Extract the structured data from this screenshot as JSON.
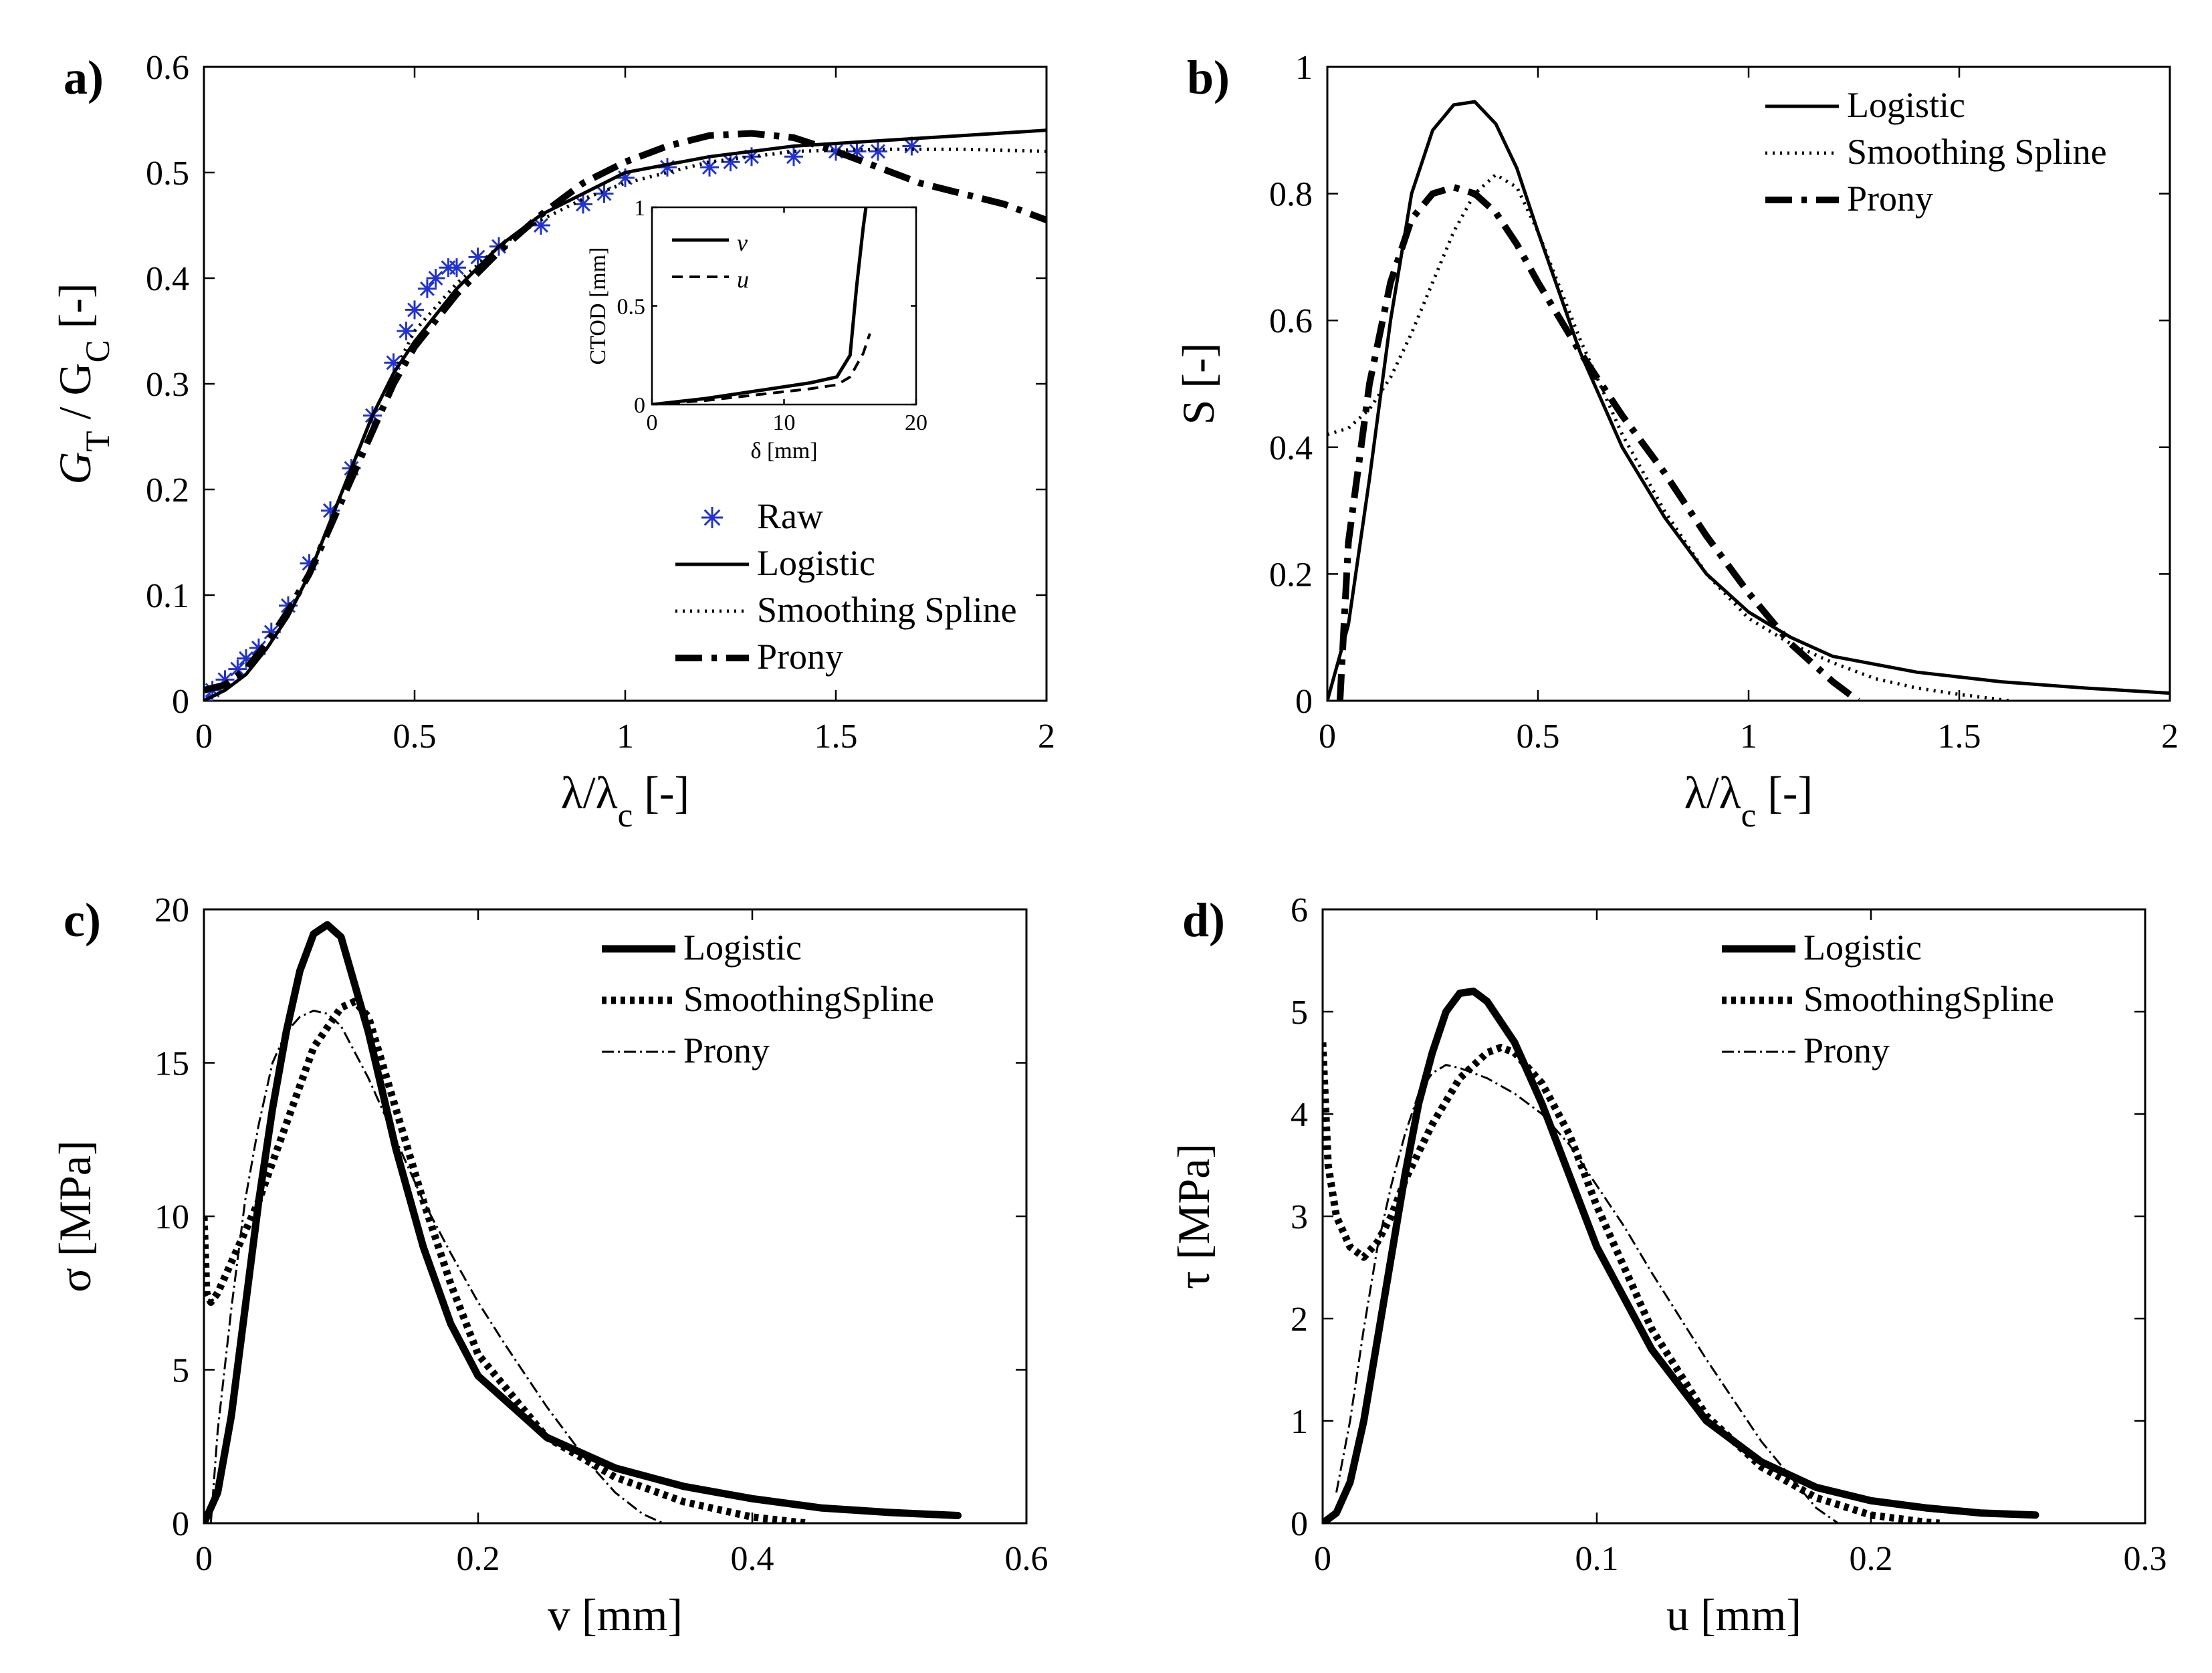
{
  "chart_data": [
    {
      "panel": "a)",
      "type": "line",
      "xlabel": "λ/λ_c [-]",
      "ylabel": "G_T / G_C [-]",
      "xlim": [
        0,
        2
      ],
      "ylim": [
        0,
        0.6
      ],
      "xticks": [
        "0",
        "0.5",
        "1",
        "1.5",
        "2"
      ],
      "yticks": [
        "0",
        "0.1",
        "0.2",
        "0.3",
        "0.4",
        "0.5",
        "0.6"
      ],
      "legend_position": "lower-right",
      "series": [
        {
          "name": "Raw",
          "style": "marker-star",
          "color": "#2233cc",
          "x": [
            0,
            0.02,
            0.05,
            0.08,
            0.1,
            0.13,
            0.16,
            0.2,
            0.25,
            0.3,
            0.35,
            0.4,
            0.45,
            0.48,
            0.5,
            0.53,
            0.55,
            0.58,
            0.6,
            0.65,
            0.7,
            0.8,
            0.9,
            0.95,
            1.0,
            1.1,
            1.2,
            1.25,
            1.3,
            1.4,
            1.5,
            1.55,
            1.6,
            1.68
          ],
          "y": [
            0,
            0.01,
            0.02,
            0.03,
            0.04,
            0.05,
            0.065,
            0.09,
            0.13,
            0.18,
            0.22,
            0.27,
            0.32,
            0.35,
            0.37,
            0.39,
            0.4,
            0.41,
            0.41,
            0.42,
            0.43,
            0.45,
            0.47,
            0.48,
            0.495,
            0.505,
            0.505,
            0.51,
            0.515,
            0.515,
            0.52,
            0.52,
            0.52,
            0.525
          ]
        },
        {
          "name": "Logistic",
          "style": "solid",
          "x": [
            0,
            0.05,
            0.1,
            0.15,
            0.2,
            0.25,
            0.3,
            0.35,
            0.4,
            0.45,
            0.5,
            0.6,
            0.7,
            0.8,
            0.9,
            1.0,
            1.2,
            1.4,
            1.6,
            1.8,
            2.0
          ],
          "y": [
            0,
            0.01,
            0.025,
            0.05,
            0.08,
            0.12,
            0.17,
            0.22,
            0.27,
            0.31,
            0.34,
            0.39,
            0.43,
            0.46,
            0.48,
            0.5,
            0.515,
            0.525,
            0.53,
            0.535,
            0.54
          ]
        },
        {
          "name": "Smoothing Spline",
          "style": "dotted",
          "x": [
            0,
            0.05,
            0.1,
            0.15,
            0.2,
            0.25,
            0.3,
            0.35,
            0.4,
            0.45,
            0.5,
            0.6,
            0.7,
            0.8,
            0.9,
            1.0,
            1.2,
            1.4,
            1.6,
            1.8,
            2.0
          ],
          "y": [
            0,
            0.01,
            0.025,
            0.05,
            0.08,
            0.12,
            0.17,
            0.22,
            0.27,
            0.31,
            0.35,
            0.395,
            0.43,
            0.455,
            0.475,
            0.49,
            0.51,
            0.52,
            0.522,
            0.522,
            0.52
          ]
        },
        {
          "name": "Prony",
          "style": "dashdot",
          "x": [
            0,
            0.05,
            0.1,
            0.15,
            0.2,
            0.25,
            0.3,
            0.35,
            0.4,
            0.45,
            0.5,
            0.6,
            0.7,
            0.8,
            0.9,
            1.0,
            1.1,
            1.2,
            1.3,
            1.4,
            1.5,
            1.6,
            1.7,
            1.8,
            1.9,
            2.0
          ],
          "y": [
            0.01,
            0.015,
            0.03,
            0.055,
            0.085,
            0.12,
            0.165,
            0.21,
            0.255,
            0.3,
            0.335,
            0.385,
            0.425,
            0.46,
            0.49,
            0.51,
            0.525,
            0.535,
            0.537,
            0.533,
            0.52,
            0.505,
            0.49,
            0.48,
            0.47,
            0.455
          ]
        }
      ],
      "inset": {
        "xlabel": "δ [mm]",
        "ylabel": "CTOD [mm]",
        "xlim": [
          0,
          20
        ],
        "ylim": [
          0,
          1
        ],
        "xticks": [
          "0",
          "10",
          "20"
        ],
        "yticks": [
          "0",
          "0.5",
          "1"
        ],
        "series": [
          {
            "name": "v",
            "style": "solid",
            "x": [
              0,
              4,
              8,
              12,
              14,
              15,
              15.5,
              16,
              16.2
            ],
            "y": [
              0,
              0.03,
              0.07,
              0.11,
              0.14,
              0.25,
              0.6,
              0.9,
              1.0
            ]
          },
          {
            "name": "u",
            "style": "dashed",
            "x": [
              0,
              4,
              8,
              12,
              14,
              15,
              16,
              16.5
            ],
            "y": [
              0,
              0.02,
              0.05,
              0.08,
              0.1,
              0.14,
              0.26,
              0.36
            ]
          }
        ]
      }
    },
    {
      "panel": "b)",
      "type": "line",
      "xlabel": "λ/λ_c [-]",
      "ylabel": "S [-]",
      "xlim": [
        0,
        2
      ],
      "ylim": [
        0,
        1
      ],
      "xticks": [
        "0",
        "0.5",
        "1",
        "1.5",
        "2"
      ],
      "yticks": [
        "0",
        "0.2",
        "0.4",
        "0.6",
        "0.8",
        "1"
      ],
      "legend_position": "top-right",
      "series": [
        {
          "name": "Logistic",
          "style": "solid",
          "x": [
            0,
            0.05,
            0.1,
            0.15,
            0.2,
            0.25,
            0.3,
            0.35,
            0.4,
            0.45,
            0.5,
            0.6,
            0.7,
            0.8,
            0.9,
            1.0,
            1.1,
            1.2,
            1.4,
            1.6,
            1.8,
            2.0
          ],
          "y": [
            0,
            0.12,
            0.35,
            0.6,
            0.8,
            0.9,
            0.94,
            0.945,
            0.91,
            0.84,
            0.74,
            0.55,
            0.4,
            0.29,
            0.2,
            0.14,
            0.1,
            0.07,
            0.045,
            0.03,
            0.02,
            0.012
          ]
        },
        {
          "name": "Smoothing Spline",
          "style": "dotted",
          "x": [
            0,
            0.05,
            0.1,
            0.15,
            0.2,
            0.25,
            0.3,
            0.35,
            0.4,
            0.45,
            0.5,
            0.6,
            0.7,
            0.8,
            0.9,
            1.0,
            1.1,
            1.2,
            1.3,
            1.4,
            1.5,
            1.62
          ],
          "y": [
            0.42,
            0.43,
            0.46,
            0.51,
            0.58,
            0.66,
            0.74,
            0.8,
            0.83,
            0.81,
            0.74,
            0.57,
            0.42,
            0.3,
            0.2,
            0.13,
            0.09,
            0.06,
            0.035,
            0.02,
            0.01,
            0
          ]
        },
        {
          "name": "Prony",
          "style": "dashdot",
          "x": [
            0.03,
            0.05,
            0.1,
            0.15,
            0.2,
            0.25,
            0.3,
            0.35,
            0.4,
            0.45,
            0.5,
            0.6,
            0.7,
            0.8,
            0.9,
            1.0,
            1.1,
            1.2,
            1.26
          ],
          "y": [
            0,
            0.25,
            0.5,
            0.66,
            0.76,
            0.8,
            0.81,
            0.8,
            0.77,
            0.72,
            0.66,
            0.55,
            0.45,
            0.36,
            0.26,
            0.17,
            0.09,
            0.03,
            0
          ]
        }
      ]
    },
    {
      "panel": "c)",
      "type": "line",
      "xlabel": "v [mm]",
      "ylabel": "σ [MPa]",
      "xlim": [
        0,
        0.6
      ],
      "ylim": [
        0,
        20
      ],
      "xticks": [
        "0",
        "0.2",
        "0.4",
        "0.6"
      ],
      "yticks": [
        "0",
        "5",
        "10",
        "15",
        "20"
      ],
      "legend_position": "top-right",
      "series": [
        {
          "name": "Logistic",
          "style": "thick-solid",
          "x": [
            0,
            0.01,
            0.02,
            0.03,
            0.04,
            0.05,
            0.06,
            0.07,
            0.08,
            0.09,
            0.1,
            0.12,
            0.14,
            0.16,
            0.18,
            0.2,
            0.25,
            0.3,
            0.35,
            0.4,
            0.45,
            0.5,
            0.55
          ],
          "y": [
            0,
            1.0,
            3.5,
            7,
            10.5,
            13.5,
            16,
            18,
            19.2,
            19.5,
            19.1,
            16,
            12.2,
            9,
            6.5,
            4.8,
            2.8,
            1.8,
            1.2,
            0.8,
            0.5,
            0.35,
            0.25
          ]
        },
        {
          "name": "SmoothingSpline",
          "style": "thick-dotted",
          "x": [
            0,
            0.002,
            0.005,
            0.01,
            0.02,
            0.04,
            0.06,
            0.08,
            0.1,
            0.11,
            0.12,
            0.14,
            0.16,
            0.18,
            0.2,
            0.25,
            0.3,
            0.35,
            0.4,
            0.44
          ],
          "y": [
            10,
            7.5,
            7.2,
            7.5,
            8.5,
            10.5,
            13,
            15.5,
            16.8,
            17,
            16.5,
            13.5,
            10.5,
            7.8,
            5.5,
            2.8,
            1.5,
            0.7,
            0.2,
            0
          ]
        },
        {
          "name": "Prony",
          "style": "thin-dashdot",
          "x": [
            0.005,
            0.01,
            0.02,
            0.03,
            0.04,
            0.05,
            0.06,
            0.07,
            0.08,
            0.09,
            0.1,
            0.12,
            0.14,
            0.16,
            0.18,
            0.2,
            0.22,
            0.25,
            0.28,
            0.3,
            0.32,
            0.335
          ],
          "y": [
            0,
            3,
            7,
            10.5,
            13,
            15,
            16,
            16.5,
            16.7,
            16.6,
            16.2,
            14.5,
            12.5,
            10.5,
            8.8,
            7.2,
            5.8,
            3.8,
            2.0,
            1.0,
            0.3,
            0
          ]
        }
      ]
    },
    {
      "panel": "d)",
      "type": "line",
      "xlabel": "u [mm]",
      "ylabel": "τ [MPa]",
      "xlim": [
        0,
        0.3
      ],
      "ylim": [
        0,
        6
      ],
      "xticks": [
        "0",
        "0.1",
        "0.2",
        "0.3"
      ],
      "yticks": [
        "0",
        "1",
        "2",
        "3",
        "4",
        "5",
        "6"
      ],
      "legend_position": "top-right",
      "series": [
        {
          "name": "Logistic",
          "style": "thick-solid",
          "x": [
            0,
            0.005,
            0.01,
            0.015,
            0.02,
            0.025,
            0.03,
            0.035,
            0.04,
            0.045,
            0.05,
            0.055,
            0.06,
            0.07,
            0.08,
            0.09,
            0.1,
            0.12,
            0.14,
            0.16,
            0.18,
            0.2,
            0.22,
            0.24,
            0.26
          ],
          "y": [
            0,
            0.1,
            0.4,
            1.0,
            1.8,
            2.6,
            3.4,
            4.1,
            4.6,
            5.0,
            5.18,
            5.2,
            5.1,
            4.7,
            4.1,
            3.4,
            2.7,
            1.7,
            1.0,
            0.6,
            0.35,
            0.22,
            0.15,
            0.1,
            0.08
          ]
        },
        {
          "name": "SmoothingSpline",
          "style": "thick-dotted",
          "x": [
            0,
            0.002,
            0.005,
            0.01,
            0.015,
            0.02,
            0.025,
            0.03,
            0.04,
            0.05,
            0.06,
            0.065,
            0.07,
            0.08,
            0.09,
            0.1,
            0.12,
            0.14,
            0.16,
            0.18,
            0.2,
            0.22,
            0.225
          ],
          "y": [
            4.7,
            3.5,
            3.0,
            2.7,
            2.6,
            2.75,
            3.0,
            3.35,
            3.9,
            4.35,
            4.6,
            4.65,
            4.6,
            4.3,
            3.8,
            3.1,
            1.9,
            1.05,
            0.55,
            0.25,
            0.08,
            0.01,
            0
          ]
        },
        {
          "name": "Prony",
          "style": "thin-dashdot",
          "x": [
            0.005,
            0.01,
            0.015,
            0.02,
            0.025,
            0.03,
            0.035,
            0.04,
            0.045,
            0.05,
            0.06,
            0.07,
            0.08,
            0.09,
            0.1,
            0.11,
            0.12,
            0.14,
            0.16,
            0.18,
            0.188
          ],
          "y": [
            0.3,
            1.0,
            1.9,
            2.7,
            3.3,
            3.8,
            4.2,
            4.4,
            4.48,
            4.45,
            4.35,
            4.2,
            4.0,
            3.7,
            3.3,
            2.9,
            2.45,
            1.6,
            0.8,
            0.15,
            0
          ]
        }
      ]
    }
  ]
}
